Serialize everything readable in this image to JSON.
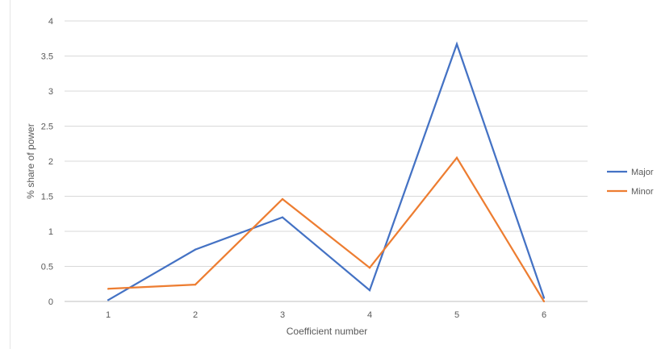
{
  "chart_data": {
    "type": "line",
    "title": "",
    "xlabel": "Coefficient number",
    "ylabel": "% share of power",
    "categories": [
      "1",
      "2",
      "3",
      "4",
      "5",
      "6"
    ],
    "ylim": [
      0,
      4
    ],
    "yticks": [
      "0",
      "0.5",
      "1",
      "1.5",
      "2",
      "2.5",
      "3",
      "3.5",
      "4"
    ],
    "grid": true,
    "legend_position": "right",
    "series": [
      {
        "name": "Major",
        "color": "#4472C4",
        "values": [
          0.02,
          0.74,
          1.2,
          0.16,
          3.67,
          0.05
        ]
      },
      {
        "name": "Minor",
        "color": "#ED7D31",
        "values": [
          0.18,
          0.24,
          1.46,
          0.48,
          2.05,
          0.0
        ]
      }
    ]
  }
}
